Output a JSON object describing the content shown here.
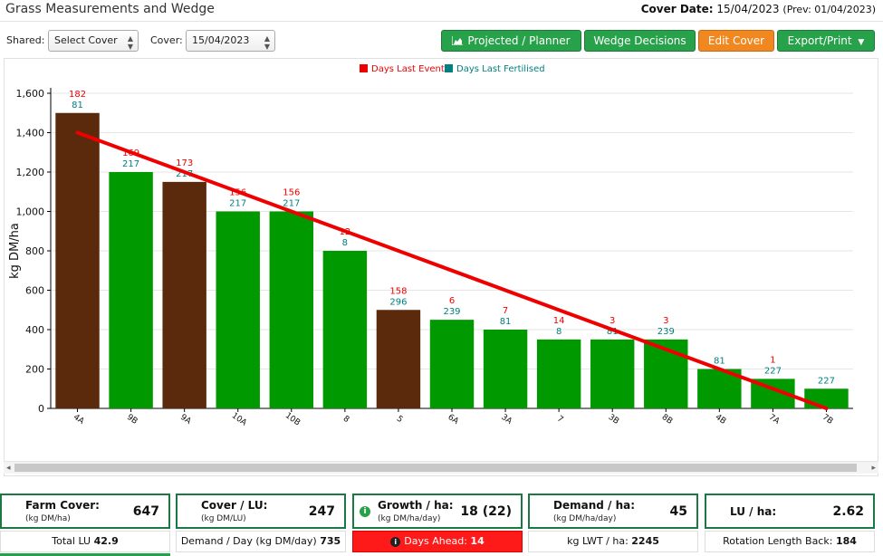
{
  "header": {
    "title": "Grass Measurements and Wedge",
    "cover_date_label": "Cover Date:",
    "cover_date_value": "15/04/2023",
    "prev_text": "(Prev: 01/04/2023)"
  },
  "toolbar": {
    "shared_label": "Shared:",
    "shared_select_value": "Select Cover",
    "cover_label": "Cover:",
    "cover_select_value": "15/04/2023",
    "buttons": {
      "projected": "Projected / Planner",
      "wedge": "Wedge Decisions",
      "edit": "Edit Cover",
      "export": "Export/Print"
    },
    "icons": {
      "projected": "area-chart-icon",
      "export": "caret-down-icon"
    }
  },
  "chart_data": {
    "type": "bar",
    "ylabel": "kg DM/ha",
    "xlabel": "",
    "ylim": [
      0,
      1600
    ],
    "yticks": [
      "0",
      "200",
      "400",
      "600",
      "800",
      "1,000",
      "1,200",
      "1,400",
      "1,600"
    ],
    "grid": true,
    "legend_position": "top-center",
    "legend": [
      {
        "name": "Days Last Event",
        "color": "#ee0000"
      },
      {
        "name": "Days Last Fertilised",
        "color": "#008080"
      }
    ],
    "categories": [
      "4A",
      "9B",
      "9A",
      "10A",
      "10B",
      "8",
      "5",
      "6A",
      "3A",
      "7",
      "3B",
      "8B",
      "4B",
      "7A",
      "7B"
    ],
    "values": [
      1500,
      1200,
      1150,
      1000,
      1000,
      800,
      500,
      450,
      400,
      350,
      350,
      350,
      200,
      150,
      100
    ],
    "bar_colors": [
      "#5b2a0c",
      "#009a00",
      "#5b2a0c",
      "#009a00",
      "#009a00",
      "#009a00",
      "#5b2a0c",
      "#009a00",
      "#009a00",
      "#009a00",
      "#009a00",
      "#009a00",
      "#009a00",
      "#009a00",
      "#009a00"
    ],
    "days_last_event": [
      "182",
      "169",
      "173",
      "156",
      "156",
      "12",
      "158",
      "6",
      "7",
      "14",
      "3",
      "3",
      "",
      "1",
      ""
    ],
    "days_last_fertilised": [
      "81",
      "217",
      "217",
      "217",
      "217",
      "8",
      "296",
      "239",
      "81",
      "8",
      "81",
      "239",
      "81",
      "227",
      "227"
    ],
    "target_line": {
      "color": "#ee0000",
      "start_value": 1400,
      "end_value": 0
    }
  },
  "summary": {
    "farm_cover": {
      "label": "Farm Cover:",
      "unit": "(kg DM/ha)",
      "value": "647",
      "sub_label": "Total LU",
      "sub_value": "42.9"
    },
    "cover_lu": {
      "label": "Cover / LU:",
      "unit": "(kg DM/LU)",
      "value": "247",
      "sub_label": "Demand / Day (kg DM/day)",
      "sub_value": "735"
    },
    "growth": {
      "label": "Growth / ha:",
      "unit": "(kg DM/ha/day)",
      "value": "18 (22)",
      "sub_label": "Days Ahead:",
      "sub_value": "14",
      "alert_color": "#ff1a1a"
    },
    "demand": {
      "label": "Demand / ha:",
      "unit": "(kg DM/ha/day)",
      "value": "45",
      "sub_label": "kg LWT / ha:",
      "sub_value": "2245"
    },
    "lu_ha": {
      "label": "LU / ha:",
      "unit": "",
      "value": "2.62",
      "sub_label": "Rotation Length Back:",
      "sub_value": "184"
    }
  }
}
